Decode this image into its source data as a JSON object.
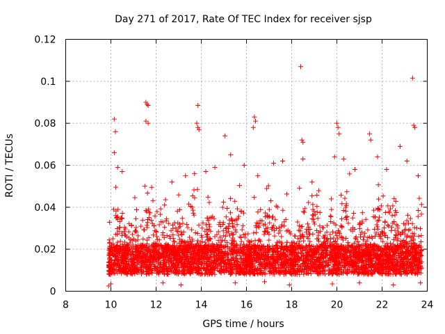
{
  "chart_data": {
    "type": "scatter",
    "title": "Day 271 of 2017, Rate Of TEC Index for receiver sjsp",
    "xlabel": "GPS time / hours",
    "ylabel": "ROTI / TECUs",
    "xlim": [
      8,
      24
    ],
    "ylim": [
      0,
      0.12
    ],
    "xticks": [
      8,
      10,
      12,
      14,
      16,
      18,
      20,
      22,
      24
    ],
    "xtick_labels": [
      "8",
      "10",
      "12",
      "14",
      "16",
      "18",
      "20",
      "22",
      "24"
    ],
    "yticks": [
      0,
      0.02,
      0.04,
      0.06,
      0.08,
      0.1,
      0.12
    ],
    "ytick_labels": [
      "0",
      "0.02",
      "0.04",
      "0.06",
      "0.08",
      "0.1",
      "0.12"
    ],
    "grid": true,
    "marker": "plus",
    "color": "#ff0000",
    "series": [
      {
        "name": "ROTI",
        "points": [
          [
            10.15,
            0.082
          ],
          [
            10.2,
            0.076
          ],
          [
            10.15,
            0.066
          ],
          [
            11.55,
            0.09
          ],
          [
            11.6,
            0.089
          ],
          [
            11.65,
            0.0885
          ],
          [
            11.55,
            0.081
          ],
          [
            11.65,
            0.08
          ],
          [
            13.85,
            0.0885
          ],
          [
            13.8,
            0.08
          ],
          [
            13.85,
            0.078
          ],
          [
            13.9,
            0.077
          ],
          [
            15.05,
            0.074
          ],
          [
            16.35,
            0.083
          ],
          [
            16.4,
            0.081
          ],
          [
            16.3,
            0.078
          ],
          [
            18.4,
            0.107
          ],
          [
            18.45,
            0.072
          ],
          [
            18.5,
            0.071
          ],
          [
            20.0,
            0.08
          ],
          [
            20.05,
            0.078
          ],
          [
            20.1,
            0.075
          ],
          [
            21.45,
            0.075
          ],
          [
            21.5,
            0.072
          ],
          [
            23.35,
            0.1015
          ],
          [
            23.4,
            0.079
          ],
          [
            23.45,
            0.078
          ],
          [
            10.3,
            0.059
          ],
          [
            10.5,
            0.057
          ],
          [
            11.5,
            0.05
          ],
          [
            12.7,
            0.052
          ],
          [
            13.3,
            0.055
          ],
          [
            13.7,
            0.056
          ],
          [
            14.2,
            0.057
          ],
          [
            14.6,
            0.059
          ],
          [
            15.3,
            0.065
          ],
          [
            15.9,
            0.06
          ],
          [
            16.5,
            0.055
          ],
          [
            17.2,
            0.061
          ],
          [
            17.6,
            0.062
          ],
          [
            18.5,
            0.063
          ],
          [
            18.9,
            0.052
          ],
          [
            19.9,
            0.064
          ],
          [
            20.3,
            0.063
          ],
          [
            20.8,
            0.058
          ],
          [
            21.8,
            0.064
          ],
          [
            22.2,
            0.058
          ],
          [
            22.8,
            0.069
          ],
          [
            23.1,
            0.062
          ],
          [
            23.6,
            0.055
          ],
          [
            9.9,
            0.0025
          ],
          [
            10.0,
            0.0035
          ],
          [
            12.3,
            0.004
          ],
          [
            13.1,
            0.003
          ],
          [
            15.5,
            0.004
          ],
          [
            16.8,
            0.0045
          ],
          [
            17.9,
            0.003
          ],
          [
            19.8,
            0.0035
          ],
          [
            21.0,
            0.004
          ],
          [
            22.5,
            0.003
          ],
          [
            23.7,
            0.004
          ]
        ]
      }
    ],
    "dense_cloud": {
      "x_start": 9.9,
      "x_end": 23.75,
      "n_points": 4200,
      "baseline": 0.015,
      "spread_low": 0.006,
      "note": "dense band of points roughly 0.005 to 0.035 TECU with spikes up to ~0.06"
    }
  }
}
